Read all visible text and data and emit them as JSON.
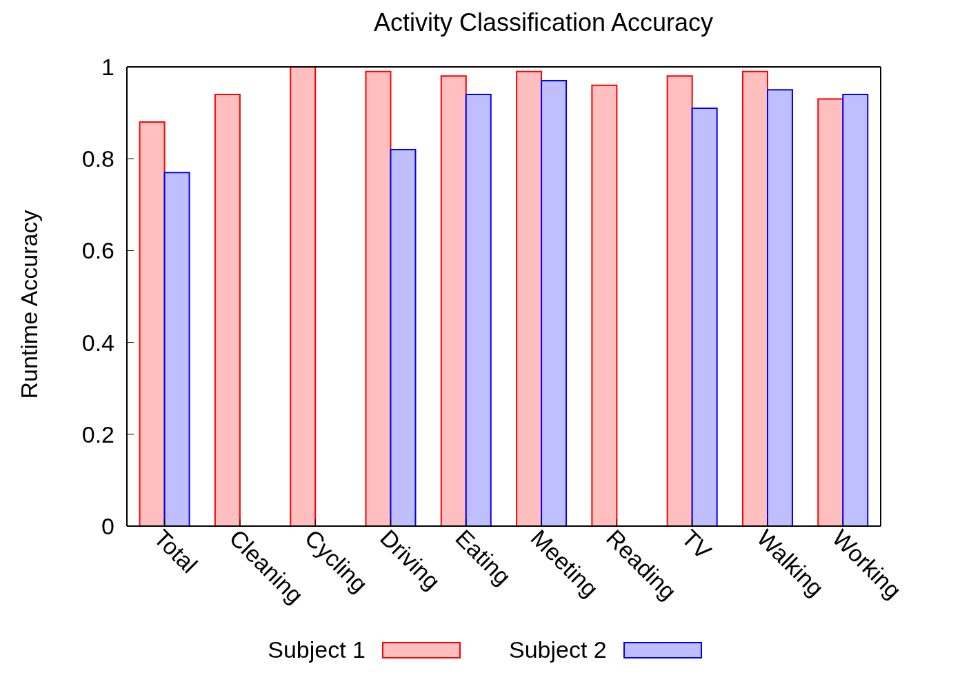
{
  "chart_data": {
    "type": "bar",
    "title": "Activity Classification Accuracy",
    "ylabel": "Runtime Accuracy",
    "categories": [
      "Total",
      "Cleaning",
      "Cycling",
      "Driving",
      "Eating",
      "Meeting",
      "Reading",
      "TV",
      "Walking",
      "Working"
    ],
    "series": [
      {
        "name": "Subject 1",
        "color": "#ff0000",
        "values": [
          0.88,
          0.94,
          1.0,
          0.99,
          0.98,
          0.99,
          0.96,
          0.98,
          0.99,
          0.93
        ]
      },
      {
        "name": "Subject 2",
        "color": "#0000ff",
        "values": [
          0.77,
          0,
          0,
          0.82,
          0.94,
          0.97,
          0,
          0.91,
          0.95,
          0.94
        ]
      }
    ],
    "ylim": [
      0,
      1
    ],
    "yticks": [
      0,
      0.2,
      0.4,
      0.6,
      0.8,
      1
    ],
    "grid": false,
    "legend": "bottom"
  }
}
